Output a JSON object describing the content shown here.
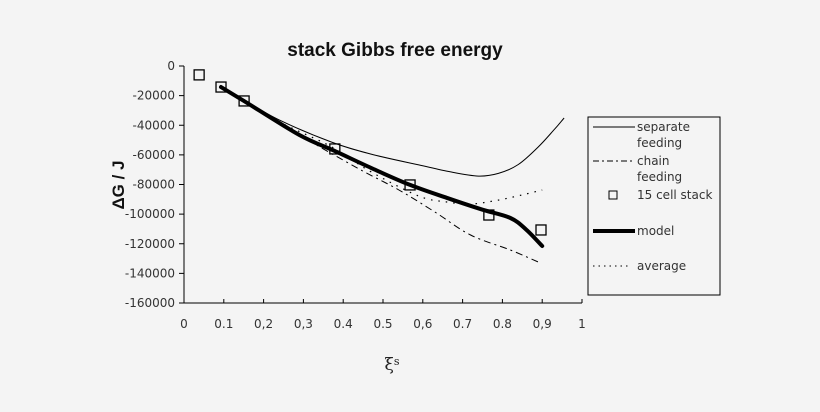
{
  "chart_data": {
    "type": "line",
    "title": "stack Gibbs free energy",
    "xlabel": "ξs",
    "ylabel": "ΔG / J",
    "xlim": [
      0,
      1
    ],
    "ylim": [
      -160000,
      0
    ],
    "x_ticks": [
      "0",
      "0.1",
      "0,2",
      "0,3",
      "0.4",
      "0.5",
      "0,6",
      "0.7",
      "0.8",
      "0,9",
      "1"
    ],
    "y_ticks": [
      "0",
      "-20000",
      "-40000",
      "-60000",
      "-80000",
      "-100000",
      "-120000",
      "-140000",
      "-160000"
    ],
    "grid": false,
    "legend_position": "right",
    "series": [
      {
        "name": "separate feeding",
        "style": "thin-solid",
        "x": [
          0.09,
          0.15,
          0.24,
          0.37,
          0.47,
          0.59,
          0.67,
          0.74,
          0.79,
          0.84,
          0.89,
          0.93,
          0.955
        ],
        "y": [
          -14000,
          -23000,
          -36500,
          -51300,
          -59500,
          -66800,
          -71500,
          -74300,
          -72500,
          -66500,
          -54700,
          -43000,
          -35100
        ]
      },
      {
        "name": "chain feeding",
        "style": "dash-dot",
        "x": [
          0.09,
          0.15,
          0.24,
          0.35,
          0.45,
          0.54,
          0.63,
          0.72,
          0.82,
          0.89
        ],
        "y": [
          -14000,
          -23500,
          -39000,
          -56000,
          -71000,
          -83700,
          -98500,
          -114100,
          -124200,
          -132300
        ]
      },
      {
        "name": "15 cell stack",
        "style": "square-marker",
        "x": [
          0.038,
          0.093,
          0.151,
          0.379,
          0.568,
          0.766,
          0.897
        ],
        "y": [
          -6000,
          -14200,
          -23600,
          -56000,
          -80300,
          -100600,
          -110700
        ]
      },
      {
        "name": "model",
        "style": "thick-solid",
        "x": [
          0.093,
          0.15,
          0.29,
          0.38,
          0.47,
          0.568,
          0.66,
          0.75,
          0.82,
          0.86,
          0.9
        ],
        "y": [
          -14200,
          -23500,
          -46600,
          -57500,
          -68800,
          -80300,
          -89000,
          -97000,
          -102600,
          -110500,
          -121500
        ]
      },
      {
        "name": "average",
        "style": "dotted",
        "x": [
          0.09,
          0.15,
          0.24,
          0.37,
          0.47,
          0.59,
          0.66,
          0.72,
          0.79,
          0.85,
          0.9
        ],
        "y": [
          -14000,
          -23200,
          -37800,
          -54500,
          -71500,
          -87800,
          -91800,
          -93200,
          -90500,
          -87000,
          -83700
        ]
      }
    ]
  },
  "legend": {
    "items": [
      {
        "line1": "separate",
        "line2": "feeding"
      },
      {
        "line1": "chain",
        "line2": "feeding"
      },
      {
        "line1": "15 cell stack",
        "line2": ""
      },
      {
        "line1": "model",
        "line2": ""
      },
      {
        "line1": "average",
        "line2": ""
      }
    ]
  },
  "colors": {
    "background": "#f4f4f4",
    "ink": "#000000"
  }
}
